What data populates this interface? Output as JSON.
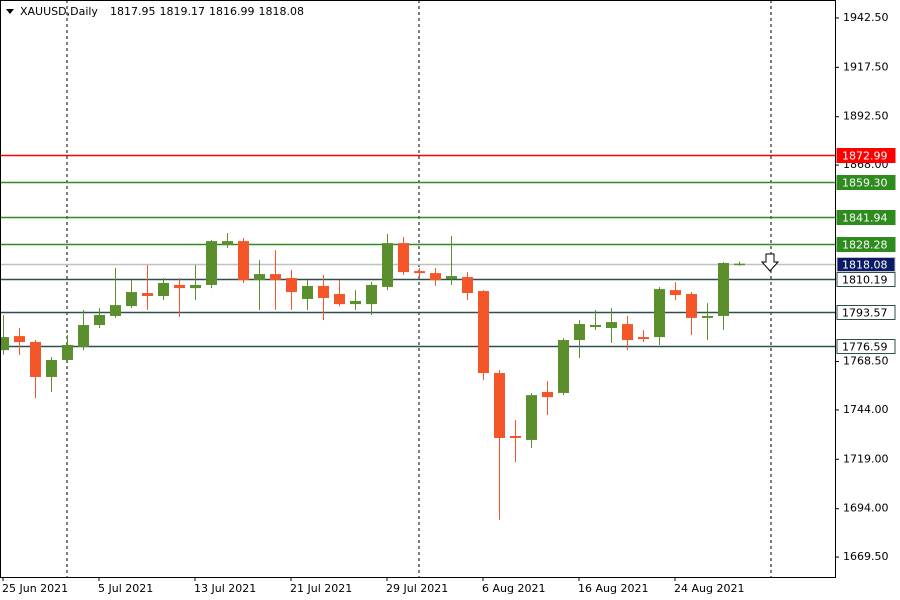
{
  "chart_data": {
    "type": "candlestick",
    "title": "XAUUSD,Daily",
    "header_values": [
      1817.95,
      1819.17,
      1816.99,
      1818.08
    ],
    "up_color": "#5b8e2d",
    "down_color": "#f4562a",
    "categories": [
      "25 Jun 2021",
      null,
      null,
      null,
      null,
      null,
      "5 Jul 2021",
      null,
      null,
      null,
      null,
      null,
      "13 Jul 2021",
      null,
      null,
      null,
      null,
      null,
      "21 Jul 2021",
      null,
      null,
      null,
      null,
      null,
      "29 Jul 2021",
      null,
      null,
      null,
      null,
      null,
      "6 Aug 2021",
      null,
      null,
      null,
      null,
      null,
      "16 Aug 2021",
      null,
      null,
      null,
      null,
      null,
      "24 Aug 2021",
      null,
      null,
      null,
      null
    ],
    "open": [
      1774.3,
      1781.4,
      1778.4,
      1760.7,
      1769.3,
      1775.9,
      1787.0,
      1791.6,
      1796.6,
      1803.2,
      1801.7,
      1807.3,
      1805.7,
      1807.3,
      1827.5,
      1829.5,
      1809.8,
      1812.8,
      1810.8,
      1800.2,
      1806.8,
      1802.7,
      1797.6,
      1797.6,
      1806.3,
      1828.5,
      1814.3,
      1813.3,
      1810.3,
      1811.3,
      1804.2,
      1762.7,
      1730.8,
      1728.8,
      1753.1,
      1752.6,
      1779.4,
      1786.0,
      1785.5,
      1787.5,
      1780.9,
      1780.9,
      1804.7,
      1802.7,
      1790.6,
      1791.6,
      1817.95
    ],
    "high": [
      1792.0,
      1785.5,
      1779.4,
      1770.8,
      1781.9,
      1794.6,
      1795.6,
      1815.9,
      1809.8,
      1817.4,
      1810.8,
      1810.8,
      1817.4,
      1830.0,
      1833.6,
      1831.1,
      1819.9,
      1825.0,
      1814.9,
      1809.8,
      1812.3,
      1809.8,
      1804.7,
      1808.8,
      1833.1,
      1831.6,
      1815.9,
      1815.9,
      1832.1,
      1813.8,
      1804.7,
      1764.2,
      1738.9,
      1752.6,
      1758.6,
      1780.4,
      1789.5,
      1794.6,
      1795.6,
      1791.6,
      1784.5,
      1806.2,
      1808.8,
      1803.7,
      1798.1,
      1818.9,
      1819.17
    ],
    "low": [
      1772.0,
      1771.8,
      1750.0,
      1753.1,
      1768.3,
      1774.3,
      1785.5,
      1790.6,
      1795.6,
      1794.6,
      1799.7,
      1791.1,
      1799.7,
      1805.7,
      1826.0,
      1808.3,
      1794.6,
      1794.6,
      1794.6,
      1794.6,
      1789.5,
      1796.6,
      1794.6,
      1792.1,
      1804.7,
      1812.3,
      1810.8,
      1806.8,
      1807.3,
      1799.7,
      1759.1,
      1688.2,
      1717.6,
      1724.7,
      1741.4,
      1751.5,
      1770.3,
      1784.5,
      1777.9,
      1774.3,
      1778.4,
      1776.9,
      1799.7,
      1781.9,
      1779.4,
      1784.5,
      1816.99
    ],
    "close": [
      1780.9,
      1778.4,
      1760.7,
      1769.3,
      1776.9,
      1787.0,
      1792.1,
      1797.1,
      1803.7,
      1801.7,
      1808.3,
      1805.7,
      1807.3,
      1829.5,
      1829.5,
      1809.8,
      1812.8,
      1809.8,
      1803.7,
      1806.8,
      1800.7,
      1797.6,
      1799.2,
      1807.3,
      1828.5,
      1813.8,
      1813.3,
      1809.8,
      1811.8,
      1803.2,
      1762.7,
      1729.8,
      1729.8,
      1751.5,
      1750.5,
      1779.4,
      1787.5,
      1787.0,
      1788.5,
      1779.4,
      1779.9,
      1805.2,
      1802.2,
      1790.6,
      1791.6,
      1818.4,
      1818.08
    ],
    "ylim": [
      1659.4,
      1951.6
    ],
    "yticks": [
      {
        "value": 1942.5,
        "label": "1942.50"
      },
      {
        "value": 1917.5,
        "label": "1917.50"
      },
      {
        "value": 1892.5,
        "label": "1892.50"
      },
      {
        "value": 1868,
        "label": "1868.00"
      },
      {
        "value": 1768.5,
        "label": "1768.50"
      },
      {
        "value": 1744,
        "label": "1744.00"
      },
      {
        "value": 1719,
        "label": "1719.00"
      },
      {
        "value": 1694,
        "label": "1694.00"
      },
      {
        "value": 1669.5,
        "label": "1669.50"
      }
    ],
    "levels": [
      {
        "value": 1872.99,
        "label": "1872.99",
        "color": "#ff0000",
        "fill": "#ff0000",
        "text_color": "#ffffff"
      },
      {
        "value": 1859.3,
        "label": "1859.30",
        "color": "#2e8b1e",
        "fill": "#2e8b1e",
        "text_color": "#ffffff"
      },
      {
        "value": 1841.94,
        "label": "1841.94",
        "color": "#2e8b1e",
        "fill": "#2e8b1e",
        "text_color": "#ffffff"
      },
      {
        "value": 1828.28,
        "label": "1828.28",
        "color": "#2e8b1e",
        "fill": "#2e8b1e",
        "text_color": "#ffffff"
      },
      {
        "value": 1818.08,
        "label": "1818.08",
        "color": "#c0c0c0",
        "fill": "#0a1a66",
        "text_color": "#ffffff"
      },
      {
        "value": 1810.19,
        "label": "1810.19",
        "color": "#2f4f4f",
        "fill": "#ffffff",
        "text_color": "#000000"
      },
      {
        "value": 1793.57,
        "label": "1793.57",
        "color": "#2f4f4f",
        "fill": "#ffffff",
        "text_color": "#000000"
      },
      {
        "value": 1776.59,
        "label": "1776.59",
        "color": "#2f4f4f",
        "fill": "#ffffff",
        "text_color": "#000000"
      }
    ]
  }
}
